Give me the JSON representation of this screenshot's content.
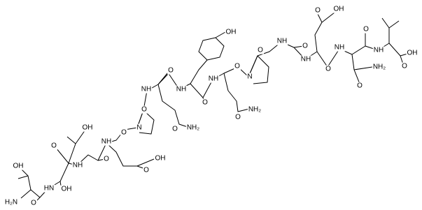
{
  "atoms": [
    {
      "label": "OH"
    },
    {
      "label": "H₂N"
    },
    {
      "label": "HN"
    },
    {
      "label": "O"
    },
    {
      "label": "OH"
    },
    {
      "label": "O"
    },
    {
      "label": "OH"
    },
    {
      "label": "NH"
    },
    {
      "label": "O"
    },
    {
      "label": "NH"
    },
    {
      "label": "O"
    },
    {
      "label": "N"
    },
    {
      "label": "O"
    },
    {
      "label": "OH"
    },
    {
      "label": "O"
    },
    {
      "label": "NH"
    },
    {
      "label": "O"
    },
    {
      "label": "NH"
    },
    {
      "label": "NH₂"
    },
    {
      "label": "O"
    },
    {
      "label": "OH"
    },
    {
      "label": "O"
    },
    {
      "label": "NH"
    },
    {
      "label": "O"
    },
    {
      "label": "N"
    },
    {
      "label": "NH₂"
    },
    {
      "label": "O"
    },
    {
      "label": "O"
    },
    {
      "label": "NH"
    },
    {
      "label": "O"
    },
    {
      "label": "OH"
    },
    {
      "label": "O"
    },
    {
      "label": "NH"
    },
    {
      "label": "O"
    },
    {
      "label": "NH"
    },
    {
      "label": "NH₂"
    },
    {
      "label": "O"
    },
    {
      "label": "NH"
    },
    {
      "label": "O"
    },
    {
      "label": "OH"
    },
    {
      "label": "O"
    }
  ]
}
